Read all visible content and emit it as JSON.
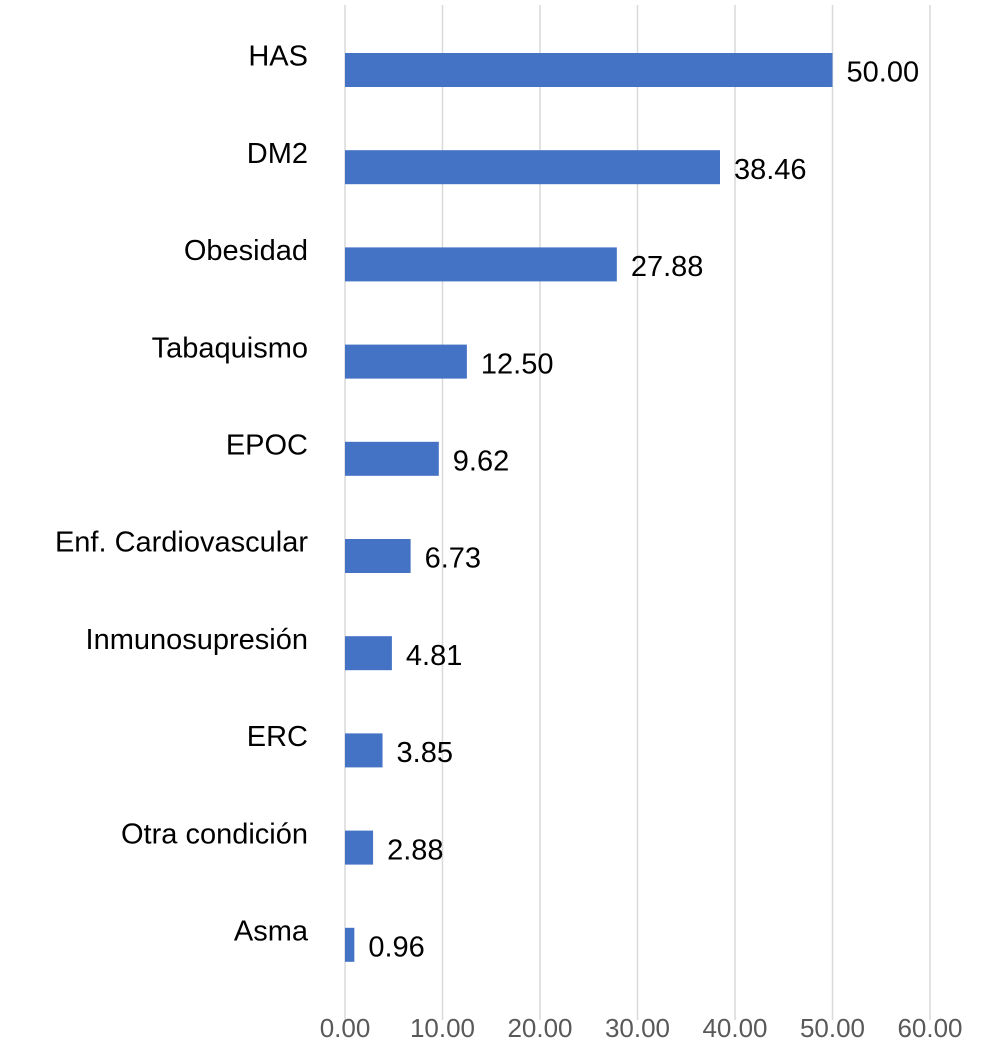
{
  "chart_data": {
    "type": "bar",
    "orientation": "horizontal",
    "categories": [
      "HAS",
      "DM2",
      "Obesidad",
      "Tabaquismo",
      "EPOC",
      "Enf. Cardiovascular",
      "Inmunosupresión",
      "ERC",
      "Otra condición",
      "Asma"
    ],
    "values": [
      50,
      38.46,
      27.88,
      12.5,
      9.62,
      6.73,
      4.81,
      3.85,
      2.88,
      0.96
    ],
    "value_labels": [
      "50.00",
      "38.46",
      "27.88",
      "12.50",
      "9.62",
      "6.73",
      "4.81",
      "3.85",
      "2.88",
      "0.96"
    ],
    "color": "#4472c4",
    "xlim": [
      0,
      60
    ],
    "xticks": [
      {
        "value": 0,
        "label": "0.00"
      },
      {
        "value": 10,
        "label": "10.00"
      },
      {
        "value": 20,
        "label": "20.00"
      },
      {
        "value": 30,
        "label": "30.00"
      },
      {
        "value": 40,
        "label": "40.00"
      },
      {
        "value": 50,
        "label": "50.00"
      },
      {
        "value": 60,
        "label": "60.00"
      }
    ],
    "grid": true
  }
}
